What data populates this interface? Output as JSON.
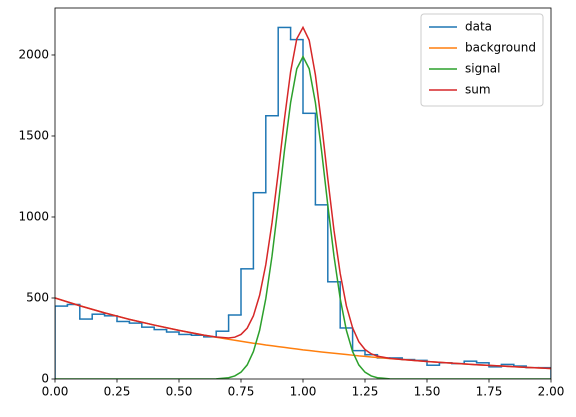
{
  "chart_data": {
    "type": "histogram",
    "bins": [
      0,
      0.05,
      0.1,
      0.15,
      0.2,
      0.25,
      0.3,
      0.35,
      0.4,
      0.45,
      0.5,
      0.55,
      0.6,
      0.65,
      0.7,
      0.75,
      0.8,
      0.85,
      0.9,
      0.95,
      1,
      1.05,
      1.1,
      1.15,
      1.2,
      1.25,
      1.3,
      1.35,
      1.4,
      1.45,
      1.5,
      1.55,
      1.6,
      1.65,
      1.7,
      1.75,
      1.8,
      1.85,
      1.9,
      1.95,
      2
    ],
    "x": [
      0,
      0.1,
      0.2,
      0.3,
      0.4,
      0.5,
      0.6,
      0.65,
      0.7,
      0.725,
      0.75,
      0.775,
      0.8,
      0.825,
      0.85,
      0.875,
      0.9,
      0.925,
      0.95,
      0.975,
      1,
      1.025,
      1.05,
      1.075,
      1.1,
      1.125,
      1.15,
      1.175,
      1.2,
      1.225,
      1.25,
      1.275,
      1.3,
      1.35,
      1.4,
      1.5,
      1.6,
      1.7,
      1.8,
      1.9,
      2
    ],
    "series": [
      {
        "name": "data",
        "color": "#1f77b4",
        "style": "step",
        "values": [
          450,
          460,
          370,
          400,
          390,
          355,
          345,
          320,
          305,
          290,
          275,
          270,
          260,
          295,
          395,
          680,
          1150,
          1625,
          2170,
          2095,
          1640,
          1075,
          600,
          315,
          175,
          150,
          130,
          130,
          120,
          115,
          85,
          100,
          95,
          110,
          100,
          75,
          90,
          80,
          70,
          70
        ]
      },
      {
        "name": "background",
        "color": "#ff7f0e",
        "style": "line",
        "values": [
          500,
          452,
          408,
          368,
          333,
          300,
          271,
          258,
          245,
          239,
          233,
          227,
          221,
          216,
          210,
          205,
          200,
          195,
          190,
          185,
          180,
          176,
          171,
          167,
          163,
          159,
          155,
          151,
          147,
          143,
          140,
          136,
          133,
          126,
          120,
          108,
          98,
          88,
          80,
          72,
          65
        ]
      },
      {
        "name": "signal",
        "color": "#2ca02c",
        "style": "line",
        "values": [
          0,
          0,
          0,
          0,
          0,
          0,
          0,
          1,
          8,
          19,
          42,
          87,
          169,
          300,
          496,
          758,
          1073,
          1407,
          1706,
          1915,
          1990,
          1915,
          1706,
          1407,
          1073,
          758,
          496,
          300,
          169,
          87,
          42,
          19,
          8,
          1,
          0,
          0,
          0,
          0,
          0,
          0,
          0
        ]
      },
      {
        "name": "sum",
        "color": "#d62728",
        "style": "line",
        "values": [
          500,
          452,
          408,
          368,
          333,
          300,
          271,
          259,
          253,
          258,
          275,
          314,
          390,
          516,
          706,
          963,
          1273,
          1602,
          1896,
          2100,
          2170,
          2091,
          1877,
          1574,
          1236,
          917,
          651,
          451,
          316,
          230,
          182,
          155,
          141,
          127,
          120,
          108,
          98,
          88,
          80,
          72,
          65
        ]
      }
    ],
    "xlim": [
      0,
      2
    ],
    "ylim": [
      0,
      2290
    ],
    "xticks": [
      {
        "value": 0,
        "label": "0.00"
      },
      {
        "value": 0.25,
        "label": "0.25"
      },
      {
        "value": 0.5,
        "label": "0.50"
      },
      {
        "value": 0.75,
        "label": "0.75"
      },
      {
        "value": 1,
        "label": "1.00"
      },
      {
        "value": 1.25,
        "label": "1.25"
      },
      {
        "value": 1.5,
        "label": "1.50"
      },
      {
        "value": 1.75,
        "label": "1.75"
      },
      {
        "value": 2,
        "label": "2.00"
      }
    ],
    "yticks": [
      0,
      500,
      1000,
      1500,
      2000
    ],
    "legend": "upper right"
  }
}
